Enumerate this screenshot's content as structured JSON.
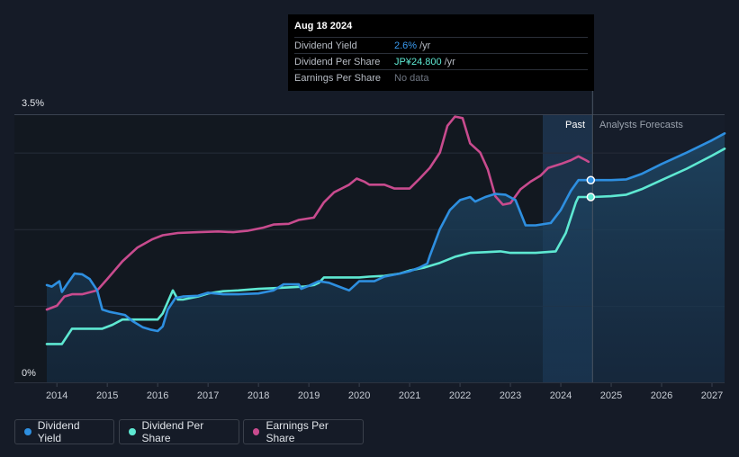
{
  "tooltip": {
    "date": "Aug 18 2024",
    "rows": [
      {
        "name": "Dividend Yield",
        "value": "2.6%",
        "unit": "/yr"
      },
      {
        "name": "Dividend Per Share",
        "value": "JP¥24.800",
        "unit": "/yr"
      },
      {
        "name": "Earnings Per Share",
        "value": "No data",
        "unit": ""
      }
    ]
  },
  "labels": {
    "past": "Past",
    "forecast": "Analysts Forecasts"
  },
  "legend": [
    {
      "label": "Dividend Yield",
      "color": "#2e8fe0"
    },
    {
      "label": "Dividend Per Share",
      "color": "#5ee8d2"
    },
    {
      "label": "Earnings Per Share",
      "color": "#c84b8e"
    }
  ],
  "chart_data": {
    "type": "line",
    "x_ticks": [
      "2014",
      "2015",
      "2016",
      "2017",
      "2018",
      "2019",
      "2020",
      "2021",
      "2022",
      "2023",
      "2024",
      "2025",
      "2026",
      "2027"
    ],
    "y_tick_labels": [
      "0%",
      "3.5%"
    ],
    "ylim": [
      0,
      3.5
    ],
    "xlim": [
      2013.8,
      2027.25
    ],
    "past_forecast_split": 2024.63,
    "series": [
      {
        "name": "Dividend Yield",
        "color": "#2e8fe0",
        "unit": "%",
        "points": [
          [
            2013.8,
            1.27
          ],
          [
            2013.9,
            1.25
          ],
          [
            2014.05,
            1.32
          ],
          [
            2014.1,
            1.18
          ],
          [
            2014.2,
            1.28
          ],
          [
            2014.35,
            1.42
          ],
          [
            2014.5,
            1.41
          ],
          [
            2014.65,
            1.35
          ],
          [
            2014.8,
            1.2
          ],
          [
            2014.9,
            0.95
          ],
          [
            2015.05,
            0.92
          ],
          [
            2015.2,
            0.9
          ],
          [
            2015.35,
            0.88
          ],
          [
            2015.5,
            0.8
          ],
          [
            2015.7,
            0.72
          ],
          [
            2015.85,
            0.69
          ],
          [
            2016.0,
            0.67
          ],
          [
            2016.1,
            0.73
          ],
          [
            2016.2,
            0.95
          ],
          [
            2016.35,
            1.1
          ],
          [
            2016.5,
            1.12
          ],
          [
            2016.8,
            1.13
          ],
          [
            2017.0,
            1.17
          ],
          [
            2017.3,
            1.15
          ],
          [
            2017.6,
            1.15
          ],
          [
            2018.0,
            1.16
          ],
          [
            2018.3,
            1.2
          ],
          [
            2018.5,
            1.28
          ],
          [
            2018.8,
            1.28
          ],
          [
            2018.85,
            1.22
          ],
          [
            2019.0,
            1.26
          ],
          [
            2019.2,
            1.32
          ],
          [
            2019.4,
            1.3
          ],
          [
            2019.6,
            1.25
          ],
          [
            2019.8,
            1.2
          ],
          [
            2020.0,
            1.32
          ],
          [
            2020.3,
            1.32
          ],
          [
            2020.5,
            1.38
          ],
          [
            2020.8,
            1.42
          ],
          [
            2021.0,
            1.45
          ],
          [
            2021.2,
            1.5
          ],
          [
            2021.35,
            1.55
          ],
          [
            2021.4,
            1.65
          ],
          [
            2021.6,
            2.0
          ],
          [
            2021.8,
            2.25
          ],
          [
            2022.0,
            2.38
          ],
          [
            2022.2,
            2.42
          ],
          [
            2022.3,
            2.36
          ],
          [
            2022.5,
            2.42
          ],
          [
            2022.7,
            2.46
          ],
          [
            2022.9,
            2.45
          ],
          [
            2023.1,
            2.38
          ],
          [
            2023.3,
            2.05
          ],
          [
            2023.5,
            2.05
          ],
          [
            2023.8,
            2.08
          ],
          [
            2024.0,
            2.25
          ],
          [
            2024.2,
            2.5
          ],
          [
            2024.35,
            2.64
          ],
          [
            2024.63,
            2.64
          ],
          [
            2025.0,
            2.64
          ],
          [
            2025.3,
            2.65
          ],
          [
            2025.6,
            2.72
          ],
          [
            2026.0,
            2.85
          ],
          [
            2026.5,
            3.0
          ],
          [
            2027.0,
            3.16
          ],
          [
            2027.25,
            3.25
          ]
        ]
      },
      {
        "name": "Dividend Per Share",
        "color": "#5ee8d2",
        "unit": "JP¥",
        "points": [
          [
            2013.8,
            0.5
          ],
          [
            2014.1,
            0.5
          ],
          [
            2014.3,
            0.7
          ],
          [
            2014.9,
            0.7
          ],
          [
            2015.1,
            0.75
          ],
          [
            2015.3,
            0.82
          ],
          [
            2015.6,
            0.82
          ],
          [
            2016.0,
            0.82
          ],
          [
            2016.1,
            0.9
          ],
          [
            2016.3,
            1.2
          ],
          [
            2016.4,
            1.08
          ],
          [
            2016.5,
            1.08
          ],
          [
            2016.8,
            1.12
          ],
          [
            2017.0,
            1.16
          ],
          [
            2017.3,
            1.19
          ],
          [
            2017.6,
            1.2
          ],
          [
            2018.0,
            1.22
          ],
          [
            2018.3,
            1.23
          ],
          [
            2018.6,
            1.24
          ],
          [
            2018.9,
            1.25
          ],
          [
            2019.1,
            1.27
          ],
          [
            2019.2,
            1.3
          ],
          [
            2019.3,
            1.37
          ],
          [
            2019.6,
            1.37
          ],
          [
            2020.0,
            1.37
          ],
          [
            2020.2,
            1.38
          ],
          [
            2020.5,
            1.39
          ],
          [
            2020.8,
            1.42
          ],
          [
            2021.0,
            1.46
          ],
          [
            2021.3,
            1.5
          ],
          [
            2021.6,
            1.56
          ],
          [
            2021.9,
            1.64
          ],
          [
            2022.2,
            1.69
          ],
          [
            2022.5,
            1.7
          ],
          [
            2022.8,
            1.71
          ],
          [
            2023.0,
            1.69
          ],
          [
            2023.5,
            1.69
          ],
          [
            2023.9,
            1.71
          ],
          [
            2024.1,
            1.95
          ],
          [
            2024.3,
            2.35
          ],
          [
            2024.35,
            2.42
          ],
          [
            2024.63,
            2.42
          ],
          [
            2025.0,
            2.43
          ],
          [
            2025.3,
            2.45
          ],
          [
            2025.6,
            2.52
          ],
          [
            2026.0,
            2.64
          ],
          [
            2026.5,
            2.79
          ],
          [
            2027.0,
            2.96
          ],
          [
            2027.25,
            3.05
          ]
        ]
      },
      {
        "name": "Earnings Per Share",
        "color": "#c84b8e",
        "unit": "JP¥",
        "points": [
          [
            2013.8,
            0.95
          ],
          [
            2014.0,
            1.0
          ],
          [
            2014.15,
            1.12
          ],
          [
            2014.3,
            1.15
          ],
          [
            2014.5,
            1.15
          ],
          [
            2014.8,
            1.2
          ],
          [
            2015.0,
            1.35
          ],
          [
            2015.3,
            1.58
          ],
          [
            2015.6,
            1.76
          ],
          [
            2015.9,
            1.87
          ],
          [
            2016.1,
            1.92
          ],
          [
            2016.4,
            1.95
          ],
          [
            2016.8,
            1.96
          ],
          [
            2017.2,
            1.97
          ],
          [
            2017.5,
            1.96
          ],
          [
            2017.8,
            1.98
          ],
          [
            2018.1,
            2.02
          ],
          [
            2018.3,
            2.06
          ],
          [
            2018.6,
            2.07
          ],
          [
            2018.8,
            2.12
          ],
          [
            2019.1,
            2.15
          ],
          [
            2019.3,
            2.35
          ],
          [
            2019.5,
            2.48
          ],
          [
            2019.8,
            2.58
          ],
          [
            2019.95,
            2.66
          ],
          [
            2020.1,
            2.62
          ],
          [
            2020.2,
            2.58
          ],
          [
            2020.5,
            2.58
          ],
          [
            2020.7,
            2.53
          ],
          [
            2021.0,
            2.53
          ],
          [
            2021.2,
            2.66
          ],
          [
            2021.4,
            2.8
          ],
          [
            2021.6,
            3.0
          ],
          [
            2021.75,
            3.35
          ],
          [
            2021.9,
            3.47
          ],
          [
            2022.05,
            3.45
          ],
          [
            2022.2,
            3.12
          ],
          [
            2022.4,
            3.0
          ],
          [
            2022.55,
            2.78
          ],
          [
            2022.7,
            2.43
          ],
          [
            2022.85,
            2.32
          ],
          [
            2023.0,
            2.34
          ],
          [
            2023.2,
            2.52
          ],
          [
            2023.4,
            2.62
          ],
          [
            2023.6,
            2.7
          ],
          [
            2023.75,
            2.8
          ],
          [
            2024.0,
            2.85
          ],
          [
            2024.2,
            2.9
          ],
          [
            2024.35,
            2.95
          ],
          [
            2024.5,
            2.9
          ],
          [
            2024.55,
            2.88
          ]
        ]
      }
    ]
  }
}
